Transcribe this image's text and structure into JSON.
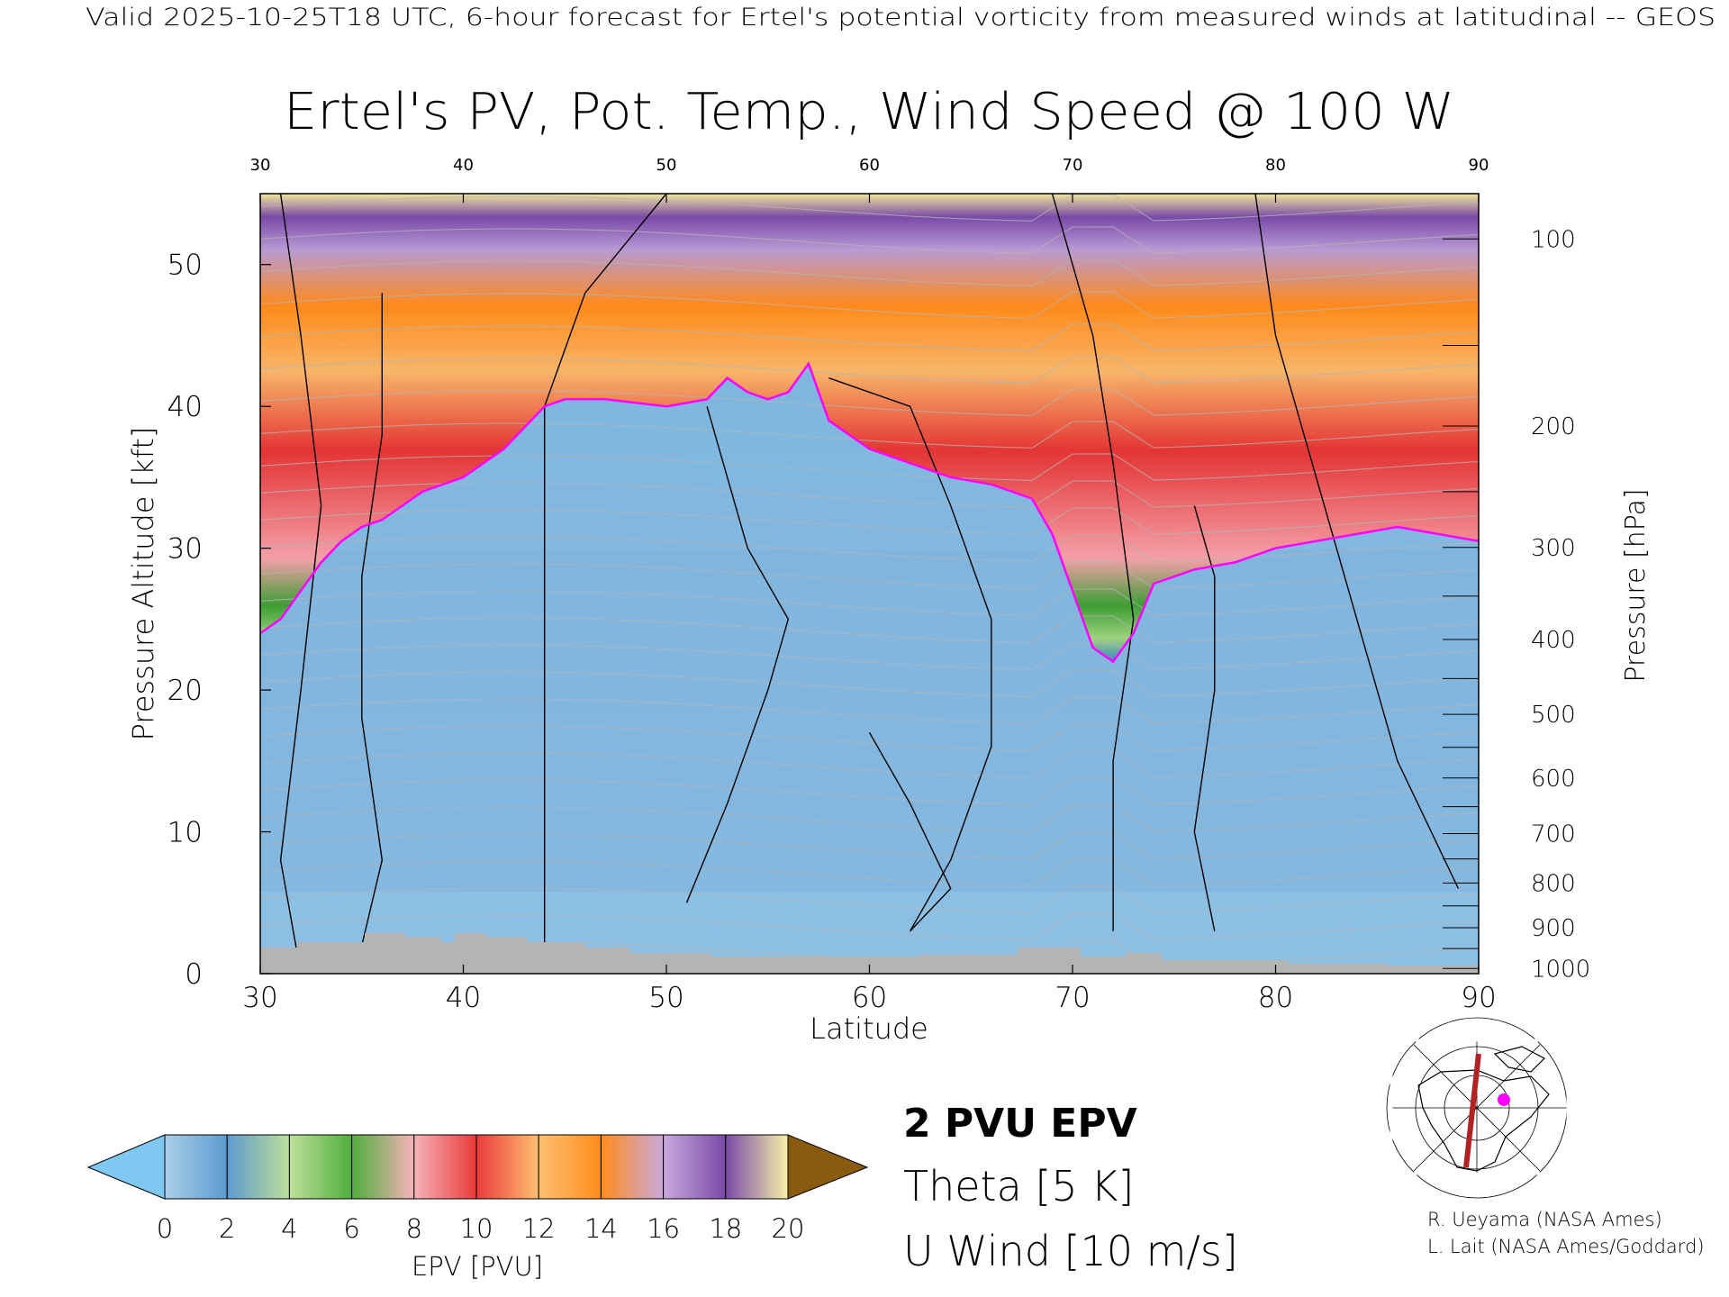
{
  "header": {
    "valid_line": "Valid 2025-10-25T18 UTC, 6-hour forecast for Ertel's potential vorticity from measured winds at latitudinal -- GEOS"
  },
  "chart_data": {
    "type": "heatmap",
    "title": "Ertel's PV, Pot. Temp., Wind Speed @ 100 W",
    "xlabel": "Latitude",
    "ylabel": "Pressure Altitude [kft]",
    "y2label": "Pressure [hPa]",
    "xlim": [
      30,
      90
    ],
    "ylim": [
      0,
      55
    ],
    "x_ticks": [
      "30",
      "40",
      "50",
      "60",
      "70",
      "80",
      "90"
    ],
    "top_ticks": [
      "30",
      "40",
      "50",
      "60",
      "70",
      "80",
      "90"
    ],
    "y_ticks": [
      "0",
      "10",
      "20",
      "30",
      "40",
      "50"
    ],
    "pressure_ticks": [
      "100",
      "200",
      "300",
      "400",
      "500",
      "600",
      "700",
      "800",
      "900",
      "1000"
    ],
    "pressure_levels": [
      100,
      200,
      300,
      400,
      500,
      600,
      700,
      800,
      900,
      1000
    ],
    "tropopause_2pvu_kft": [
      [
        30,
        24
      ],
      [
        31,
        25
      ],
      [
        32,
        27
      ],
      [
        33,
        29
      ],
      [
        34,
        30.5
      ],
      [
        35,
        31.5
      ],
      [
        36,
        32
      ],
      [
        37,
        33
      ],
      [
        38,
        34
      ],
      [
        39,
        34.5
      ],
      [
        40,
        35
      ],
      [
        41,
        36
      ],
      [
        42,
        37
      ],
      [
        43,
        38.5
      ],
      [
        44,
        40
      ],
      [
        45,
        40.5
      ],
      [
        47,
        40.5
      ],
      [
        50,
        40
      ],
      [
        52,
        40.5
      ],
      [
        53,
        42
      ],
      [
        54,
        41
      ],
      [
        55,
        40.5
      ],
      [
        56,
        41
      ],
      [
        57,
        43
      ],
      [
        58,
        39
      ],
      [
        60,
        37
      ],
      [
        62,
        36
      ],
      [
        64,
        35
      ],
      [
        66,
        34.5
      ],
      [
        68,
        33.5
      ],
      [
        69,
        31
      ],
      [
        70,
        27
      ],
      [
        71,
        23
      ],
      [
        72,
        22
      ],
      [
        73,
        24
      ],
      [
        74,
        27.5
      ],
      [
        76,
        28.5
      ],
      [
        78,
        29
      ],
      [
        80,
        30
      ],
      [
        82,
        30.5
      ],
      [
        84,
        31
      ],
      [
        86,
        31.5
      ],
      [
        88,
        31
      ],
      [
        90,
        30.5
      ]
    ],
    "colorbar": {
      "label": "EPV [PVU]",
      "ticks": [
        "0",
        "2",
        "4",
        "6",
        "8",
        "10",
        "12",
        "14",
        "16",
        "18",
        "20"
      ],
      "colors": [
        "#a9cfe8",
        "#5d9bd0",
        "#bfe09a",
        "#4fae3c",
        "#f7b2ba",
        "#e83a3a",
        "#ffc070",
        "#ff8c1c",
        "#c8a8dc",
        "#7a4aa8",
        "#f7f2a8"
      ],
      "under_color": "#7fc8f2",
      "over_color": "#8a5a10"
    }
  },
  "legend": {
    "pv_label": "2 PVU EPV",
    "pv_color": "#ff00ff",
    "theta_label": "Theta [5 K]",
    "theta_color": "#b4b4b4",
    "uwind_label": "U Wind [10 m/s]"
  },
  "credits": {
    "line1": "R. Ueyama (NASA Ames)",
    "line2": "L. Lait (NASA Ames/Goddard)"
  },
  "inset_map": {
    "marker_color": "#ff00ff",
    "track_color": "#b22222"
  }
}
